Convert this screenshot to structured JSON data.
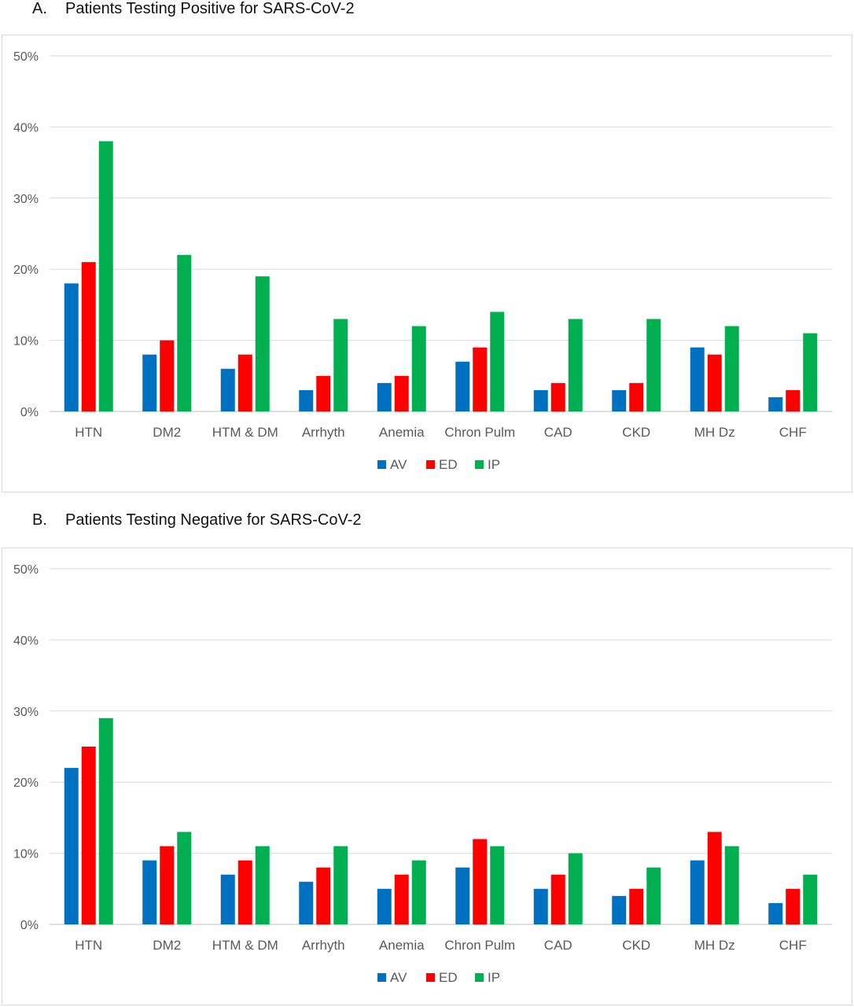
{
  "chart_data": [
    {
      "type": "bar",
      "panel_letter": "A.",
      "title": "Patients Testing Positive for SARS-CoV-2",
      "categories": [
        "HTN",
        "DM2",
        "HTM & DM",
        "Arrhyth",
        "Anemia",
        "Chron Pulm",
        "CAD",
        "CKD",
        "MH Dz",
        "CHF"
      ],
      "series": [
        {
          "name": "AV",
          "color": "#0070C0",
          "values": [
            18,
            8,
            6,
            3,
            4,
            7,
            3,
            3,
            9,
            2
          ]
        },
        {
          "name": "ED",
          "color": "#FF0000",
          "values": [
            21,
            10,
            8,
            5,
            5,
            9,
            4,
            4,
            8,
            3
          ]
        },
        {
          "name": "IP",
          "color": "#00B050",
          "values": [
            38,
            22,
            19,
            13,
            12,
            14,
            13,
            13,
            12,
            11
          ]
        }
      ],
      "ylim": [
        0,
        50
      ],
      "yticks": [
        "0%",
        "10%",
        "20%",
        "30%",
        "40%",
        "50%"
      ],
      "grid": true,
      "legend_position": "bottom"
    },
    {
      "type": "bar",
      "panel_letter": "B.",
      "title": "Patients Testing Negative for SARS-CoV-2",
      "categories": [
        "HTN",
        "DM2",
        "HTM & DM",
        "Arrhyth",
        "Anemia",
        "Chron Pulm",
        "CAD",
        "CKD",
        "MH Dz",
        "CHF"
      ],
      "series": [
        {
          "name": "AV",
          "color": "#0070C0",
          "values": [
            22,
            9,
            7,
            6,
            5,
            8,
            5,
            4,
            9,
            3
          ]
        },
        {
          "name": "ED",
          "color": "#FF0000",
          "values": [
            25,
            11,
            9,
            8,
            7,
            12,
            7,
            5,
            13,
            5
          ]
        },
        {
          "name": "IP",
          "color": "#00B050",
          "values": [
            29,
            13,
            11,
            11,
            9,
            11,
            10,
            8,
            11,
            7
          ]
        }
      ],
      "ylim": [
        0,
        50
      ],
      "yticks": [
        "0%",
        "10%",
        "20%",
        "30%",
        "40%",
        "50%"
      ],
      "grid": true,
      "legend_position": "bottom"
    }
  ]
}
